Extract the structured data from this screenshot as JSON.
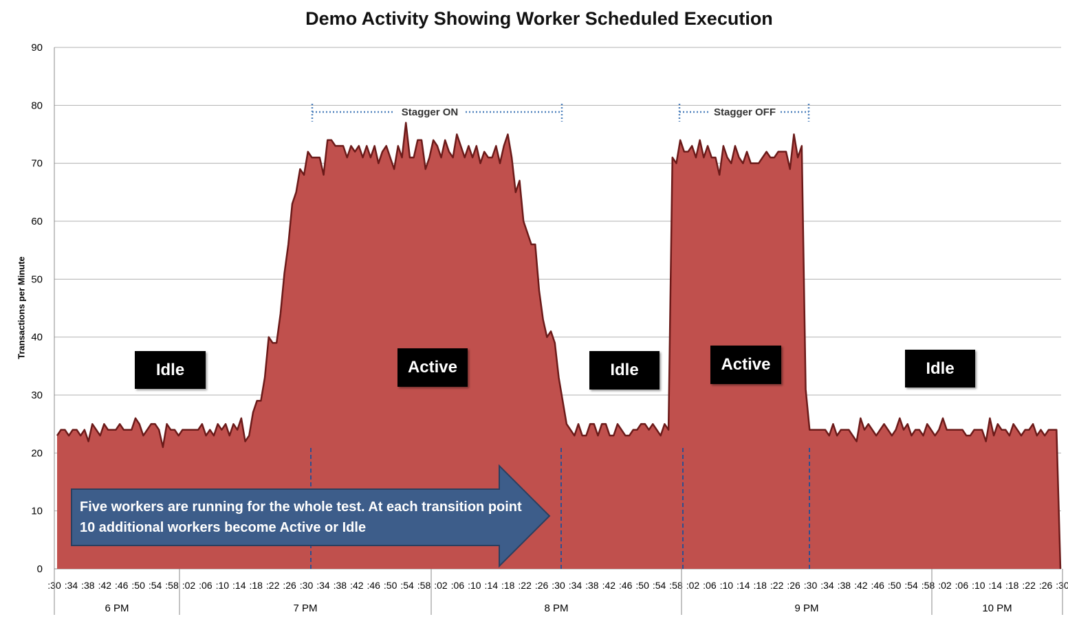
{
  "chart_data": {
    "type": "area",
    "title": "Demo Activity Showing Worker Scheduled Execution",
    "xlabel": "",
    "ylabel": "Transactions per Minute",
    "ylim": [
      0,
      90
    ],
    "yticks": [
      0,
      10,
      20,
      30,
      40,
      50,
      60,
      70,
      80,
      90
    ],
    "grid": true,
    "color": "#c0504d",
    "line_color": "#6b1a19",
    "minute_tick_labels": [
      ":30",
      ":34",
      ":38",
      ":42",
      ":46",
      ":50",
      ":54",
      ":58",
      ":02",
      ":06",
      ":10",
      ":14",
      ":18",
      ":22",
      ":26",
      ":30",
      ":34",
      ":38",
      ":42",
      ":46",
      ":50",
      ":54",
      ":58",
      ":02",
      ":06",
      ":10",
      ":14",
      ":18",
      ":22",
      ":26",
      ":30",
      ":34",
      ":38",
      ":42",
      ":46",
      ":50",
      ":54",
      ":58",
      ":02",
      ":06",
      ":10",
      ":14",
      ":18",
      ":22",
      ":26",
      ":30",
      ":34",
      ":38",
      ":42",
      ":46",
      ":50",
      ":54",
      ":58",
      ":02",
      ":06",
      ":10",
      ":14",
      ":18",
      ":22",
      ":26",
      ":30"
    ],
    "hour_labels": [
      "6 PM",
      "7 PM",
      "8 PM",
      "9 PM",
      "10 PM"
    ],
    "values": [
      23,
      24,
      24,
      23,
      24,
      24,
      23,
      24,
      22,
      25,
      24,
      23,
      25,
      24,
      24,
      24,
      25,
      24,
      24,
      24,
      26,
      25,
      23,
      24,
      25,
      25,
      24,
      21,
      25,
      24,
      24,
      23,
      24,
      24,
      24,
      24,
      24,
      25,
      23,
      24,
      23,
      25,
      24,
      25,
      23,
      25,
      24,
      26,
      22,
      23,
      27,
      29,
      29,
      33,
      40,
      39,
      39,
      44,
      51,
      56,
      63,
      65,
      69,
      68,
      72,
      71,
      71,
      71,
      68,
      74,
      74,
      73,
      73,
      73,
      71,
      73,
      72,
      73,
      71,
      73,
      71,
      73,
      70,
      72,
      73,
      71,
      69,
      73,
      71,
      77,
      71,
      71,
      74,
      74,
      69,
      71,
      74,
      73,
      71,
      74,
      72,
      71,
      75,
      73,
      71,
      73,
      71,
      73,
      70,
      72,
      71,
      71,
      73,
      70,
      73,
      75,
      71,
      65,
      67,
      60,
      58,
      56,
      56,
      48,
      43,
      40,
      41,
      39,
      33,
      29,
      25,
      24,
      23,
      25,
      23,
      23,
      25,
      25,
      23,
      25,
      25,
      23,
      23,
      25,
      24,
      23,
      23,
      24,
      24,
      25,
      25,
      24,
      25,
      24,
      23,
      25,
      24,
      71,
      70,
      74,
      72,
      72,
      73,
      71,
      74,
      71,
      73,
      71,
      71,
      68,
      73,
      71,
      70,
      73,
      71,
      70,
      72,
      70,
      70,
      70,
      71,
      72,
      71,
      71,
      72,
      72,
      72,
      69,
      75,
      71,
      73,
      31,
      24,
      24,
      24,
      24,
      24,
      23,
      25,
      23,
      24,
      24,
      24,
      23,
      22,
      26,
      24,
      25,
      24,
      23,
      24,
      25,
      24,
      23,
      24,
      26,
      24,
      25,
      23,
      24,
      24,
      23,
      25,
      24,
      23,
      24,
      26,
      24,
      24,
      24,
      24,
      24,
      23,
      23,
      24,
      24,
      24,
      22,
      26,
      23,
      25,
      24,
      24,
      23,
      25,
      24,
      23,
      24,
      24,
      25,
      23,
      24,
      23,
      24,
      24,
      24,
      0
    ],
    "annotations": {
      "regions": [
        "Idle",
        "Active",
        "Idle",
        "Active",
        "Idle"
      ],
      "stagger_on": "Stagger ON",
      "stagger_off": "Stagger OFF",
      "callout": "Five workers are running for the whole test. At each transition point 10 additional workers become Active or Idle"
    }
  }
}
